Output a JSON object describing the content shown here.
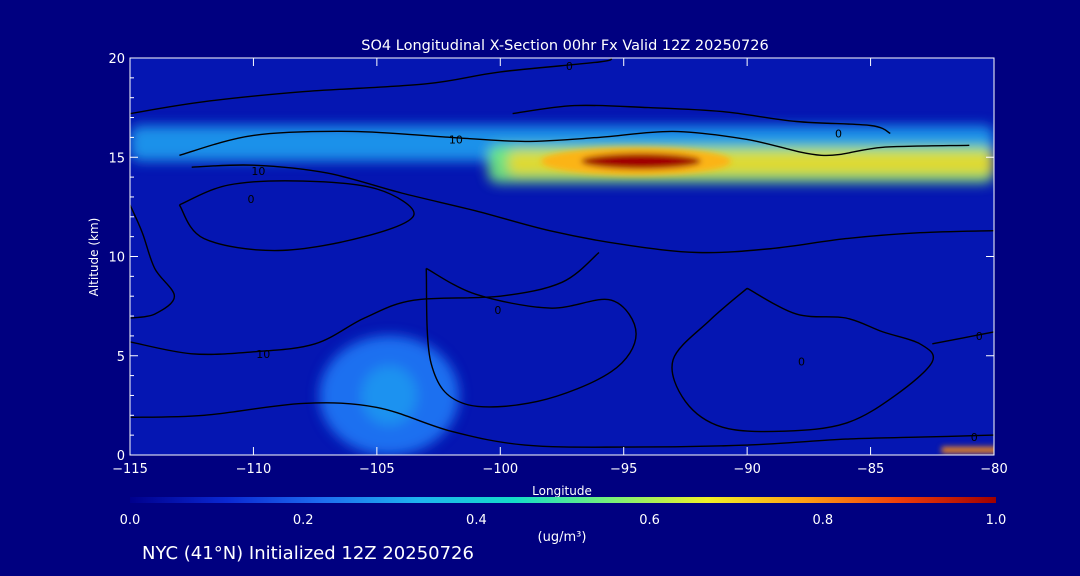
{
  "page": {
    "background": "#000080",
    "footer": "NYC (41°N) Initialized 12Z 20250726"
  },
  "chart_data": {
    "type": "heatmap",
    "title": "SO4 Longitudinal X-Section 00hr  Fx Valid 12Z 20250726",
    "xlabel": "Longitude",
    "ylabel": "Altitude (km)",
    "xlim": [
      -115,
      -80
    ],
    "ylim": [
      0,
      20
    ],
    "x_ticks": [
      -115,
      -110,
      -105,
      -100,
      -95,
      -90,
      -85,
      -80
    ],
    "x_tick_labels": [
      "−115",
      "−110",
      "−105",
      "−100",
      "−95",
      "−90",
      "−85",
      "−80"
    ],
    "y_ticks": [
      0,
      5,
      10,
      15,
      20
    ],
    "y_tick_labels": [
      "0",
      "5",
      "10",
      "15",
      "20"
    ],
    "colorbar": {
      "range": [
        0.0,
        1.0
      ],
      "ticks": [
        0.0,
        0.2,
        0.4,
        0.6,
        0.8,
        1.0
      ],
      "tick_labels": [
        "0.0",
        "0.2",
        "0.4",
        "0.6",
        "0.8",
        "1.0"
      ],
      "unit_label": "(ug/m³)",
      "colors": [
        "#00008c",
        "#0a28d2",
        "#1e6ef0",
        "#1eb4f0",
        "#14dcc8",
        "#78f078",
        "#f0f028",
        "#ffa014",
        "#f03c0a",
        "#a00000"
      ]
    },
    "field_features": [
      {
        "kind": "band",
        "label": "upper-level layer",
        "lon": [
          -115,
          -80
        ],
        "alt": [
          14.8,
          16.6
        ],
        "value": 0.3
      },
      {
        "kind": "band",
        "label": "plume core",
        "lon": [
          -100.5,
          -80
        ],
        "alt": [
          13.7,
          15.6
        ],
        "value": 0.55
      },
      {
        "kind": "peak",
        "label": "max",
        "lon": -94.5,
        "alt": 14.8,
        "value": 1.0
      },
      {
        "kind": "bump",
        "label": "low-level maximum",
        "lon": -104.5,
        "alt": 3.0,
        "value": 0.28
      },
      {
        "kind": "surface",
        "label": "surface max",
        "lon": -80.5,
        "alt": 0.2,
        "value": 0.8
      }
    ],
    "contours": [
      {
        "label": "0",
        "points": [
          [
            -115,
            17.2
          ],
          [
            -112,
            17.8
          ],
          [
            -108,
            18.3
          ],
          [
            -103,
            18.7
          ],
          [
            -100,
            19.3
          ],
          [
            -96,
            19.8
          ],
          [
            -95.5,
            20
          ]
        ],
        "label_at": [
          -97.2,
          19.6
        ]
      },
      {
        "label": "0",
        "points": [
          [
            -99.5,
            17.2
          ],
          [
            -97,
            17.6
          ],
          [
            -94,
            17.5
          ],
          [
            -91,
            17.3
          ],
          [
            -88,
            16.8
          ],
          [
            -85,
            16.6
          ],
          [
            -84.2,
            16.2
          ]
        ],
        "label_at": [
          -86.3,
          16.2
        ]
      },
      {
        "label": "10",
        "points": [
          [
            -113,
            15.1
          ],
          [
            -110,
            16.1
          ],
          [
            -106,
            16.3
          ],
          [
            -102,
            16.0
          ],
          [
            -99,
            15.8
          ],
          [
            -96,
            16.0
          ],
          [
            -93,
            16.3
          ],
          [
            -90,
            15.9
          ],
          [
            -87,
            15.1
          ],
          [
            -84.5,
            15.5
          ],
          [
            -81,
            15.6
          ]
        ],
        "label_at": [
          -101.8,
          15.9
        ]
      },
      {
        "label": "10",
        "points": [
          [
            -112.5,
            14.5
          ],
          [
            -110,
            14.6
          ],
          [
            -107,
            14.2
          ],
          [
            -104,
            13.2
          ],
          [
            -101,
            12.3
          ],
          [
            -98,
            11.3
          ],
          [
            -95,
            10.6
          ],
          [
            -92,
            10.2
          ],
          [
            -89,
            10.4
          ],
          [
            -86,
            10.9
          ],
          [
            -83,
            11.2
          ],
          [
            -80,
            11.3
          ]
        ],
        "label_at": [
          -109.8,
          14.3
        ]
      },
      {
        "label": "0",
        "points": [
          [
            -113,
            12.6
          ],
          [
            -111,
            13.6
          ],
          [
            -108,
            13.8
          ],
          [
            -105,
            13.4
          ],
          [
            -103.5,
            12.1
          ],
          [
            -105.5,
            11.0
          ],
          [
            -109,
            10.3
          ],
          [
            -112,
            10.9
          ],
          [
            -113,
            12.6
          ]
        ],
        "label_at": [
          -110.1,
          12.9
        ]
      },
      {
        "label": "0",
        "points": [
          [
            -103,
            9.4
          ],
          [
            -101,
            8.1
          ],
          [
            -98,
            7.4
          ],
          [
            -95.5,
            7.8
          ],
          [
            -94.5,
            6.1
          ],
          [
            -95.5,
            4.2
          ],
          [
            -98.5,
            2.7
          ],
          [
            -101.5,
            2.6
          ],
          [
            -102.8,
            4.6
          ],
          [
            -103,
            9.4
          ]
        ],
        "label_at": [
          -100.1,
          7.3
        ]
      },
      {
        "label": "0",
        "points": [
          [
            -90,
            8.4
          ],
          [
            -88,
            7.1
          ],
          [
            -86,
            6.9
          ],
          [
            -84.5,
            6.2
          ],
          [
            -83,
            5.6
          ],
          [
            -82.5,
            4.7
          ],
          [
            -84,
            3.0
          ],
          [
            -86,
            1.6
          ],
          [
            -88.5,
            1.2
          ],
          [
            -91,
            1.4
          ],
          [
            -92.5,
            2.7
          ],
          [
            -93,
            4.8
          ],
          [
            -91.5,
            6.8
          ],
          [
            -90,
            8.4
          ]
        ],
        "label_at": [
          -87.8,
          4.7
        ]
      },
      {
        "label": "10",
        "points": [
          [
            -115,
            5.7
          ],
          [
            -112.5,
            5.1
          ],
          [
            -110,
            5.2
          ],
          [
            -107.5,
            5.6
          ],
          [
            -105.5,
            6.9
          ],
          [
            -103.5,
            7.8
          ],
          [
            -100,
            8.0
          ],
          [
            -97.5,
            8.7
          ],
          [
            -96,
            10.2
          ]
        ],
        "label_at": [
          -109.6,
          5.1
        ]
      },
      {
        "label": "",
        "points": [
          [
            -115,
            12.6
          ],
          [
            -114.5,
            11.2
          ],
          [
            -114,
            9.4
          ],
          [
            -113.2,
            8.0
          ],
          [
            -114,
            7.1
          ],
          [
            -115,
            6.9
          ]
        ],
        "label_at": null
      },
      {
        "label": "0",
        "points": [
          [
            -82.5,
            5.6
          ],
          [
            -80,
            6.2
          ]
        ],
        "label_at": [
          -80.6,
          6.0
        ]
      },
      {
        "label": "0",
        "points": [
          [
            -115,
            1.9
          ],
          [
            -112,
            2.0
          ],
          [
            -108,
            2.6
          ],
          [
            -105,
            2.4
          ],
          [
            -102,
            1.2
          ],
          [
            -99,
            0.5
          ],
          [
            -95,
            0.4
          ],
          [
            -90,
            0.5
          ],
          [
            -86,
            0.8
          ],
          [
            -83,
            0.9
          ],
          [
            -80,
            1.0
          ]
        ],
        "label_at": [
          -80.8,
          0.9
        ]
      }
    ]
  }
}
